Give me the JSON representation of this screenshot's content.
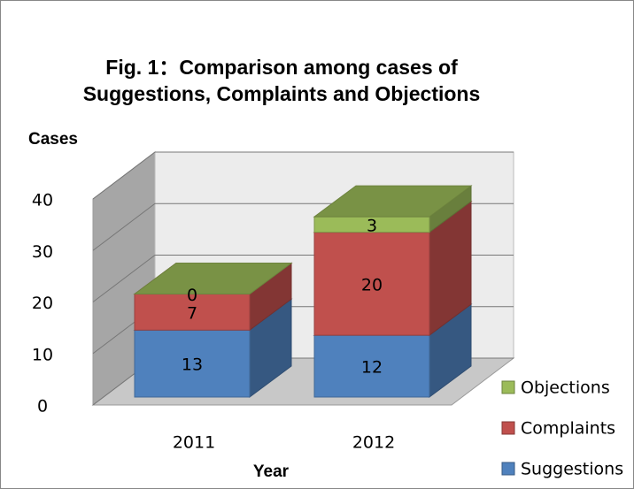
{
  "chart_data": {
    "type": "bar3d_stacked",
    "title": [
      "Fig. 1：Comparison among cases of",
      "Suggestions, Complaints and Objections"
    ],
    "ylabel": "Cases",
    "xlabel": "Year",
    "categories": [
      "2011",
      "2012"
    ],
    "series": [
      {
        "name": "Suggestions",
        "color": "#4f81bd",
        "values": [
          13,
          12
        ]
      },
      {
        "name": "Complaints",
        "color": "#c0504d",
        "values": [
          7,
          20
        ]
      },
      {
        "name": "Objections",
        "color": "#9bbb59",
        "values": [
          0,
          3
        ]
      }
    ],
    "ylim": [
      0,
      40
    ],
    "yticks": [
      0,
      10,
      20,
      30,
      40
    ],
    "grid": true,
    "legend": "right"
  }
}
